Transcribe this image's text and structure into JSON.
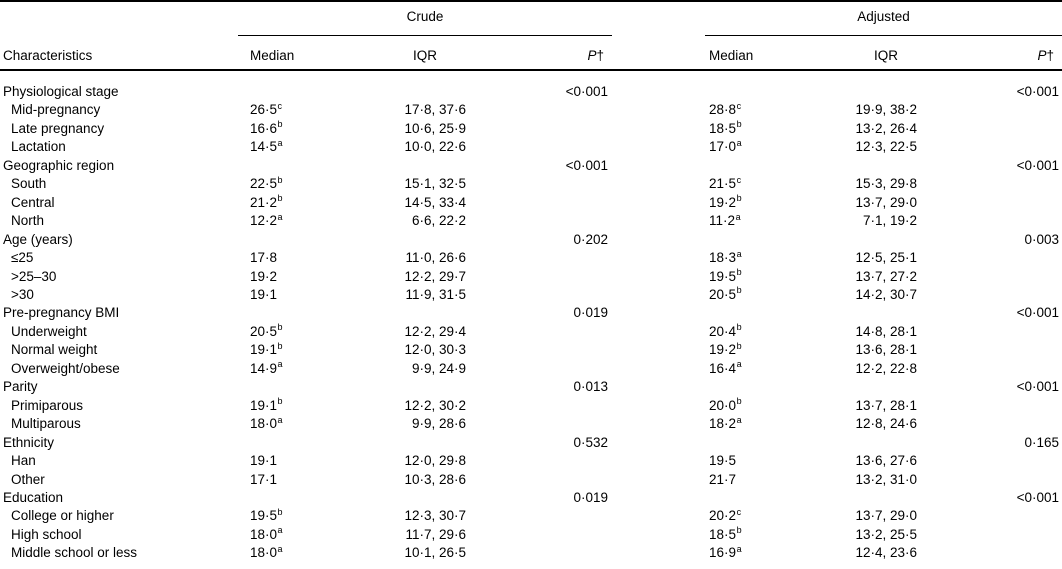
{
  "table": {
    "characteristics_header": "Characteristics",
    "groups": [
      {
        "label": "Crude"
      },
      {
        "label": "Adjusted"
      }
    ],
    "subheaders": {
      "median": "Median",
      "iqr": "IQR",
      "p": "P",
      "p_dagger": "†"
    },
    "rows": [
      {
        "label": "Physiological stage",
        "indent": 0,
        "c_med": "",
        "c_sup": "",
        "c_iqr": "",
        "c_p": "<0·001",
        "a_med": "",
        "a_sup": "",
        "a_iqr": "",
        "a_p": "<0·001"
      },
      {
        "label": "Mid-pregnancy",
        "indent": 1,
        "c_med": "26·5",
        "c_sup": "c",
        "c_iqr": "17·8, 37·6",
        "c_p": "",
        "a_med": "28·8",
        "a_sup": "c",
        "a_iqr": "19·9, 38·2",
        "a_p": ""
      },
      {
        "label": "Late pregnancy",
        "indent": 1,
        "c_med": "16·6",
        "c_sup": "b",
        "c_iqr": "10·6, 25·9",
        "c_p": "",
        "a_med": "18·5",
        "a_sup": "b",
        "a_iqr": "13·2, 26·4",
        "a_p": ""
      },
      {
        "label": "Lactation",
        "indent": 1,
        "c_med": "14·5",
        "c_sup": "a",
        "c_iqr": "10·0, 22·6",
        "c_p": "",
        "a_med": "17·0",
        "a_sup": "a",
        "a_iqr": "12·3, 22·5",
        "a_p": ""
      },
      {
        "label": "Geographic region",
        "indent": 0,
        "c_med": "",
        "c_sup": "",
        "c_iqr": "",
        "c_p": "<0·001",
        "a_med": "",
        "a_sup": "",
        "a_iqr": "",
        "a_p": "<0·001"
      },
      {
        "label": "South",
        "indent": 1,
        "c_med": "22·5",
        "c_sup": "b",
        "c_iqr": "15·1, 32·5",
        "c_p": "",
        "a_med": "21·5",
        "a_sup": "c",
        "a_iqr": "15·3, 29·8",
        "a_p": ""
      },
      {
        "label": "Central",
        "indent": 1,
        "c_med": "21·2",
        "c_sup": "b",
        "c_iqr": "14·5, 33·4",
        "c_p": "",
        "a_med": "19·2",
        "a_sup": "b",
        "a_iqr": "13·7, 29·0",
        "a_p": ""
      },
      {
        "label": "North",
        "indent": 1,
        "c_med": "12·2",
        "c_sup": "a",
        "c_iqr": "6·6, 22·2",
        "c_p": "",
        "a_med": "11·2",
        "a_sup": "a",
        "a_iqr": "7·1, 19·2",
        "a_p": ""
      },
      {
        "label": "Age (years)",
        "indent": 0,
        "c_med": "",
        "c_sup": "",
        "c_iqr": "",
        "c_p": "0·202",
        "a_med": "",
        "a_sup": "",
        "a_iqr": "",
        "a_p": "0·003"
      },
      {
        "label": "≤25",
        "indent": 1,
        "c_med": "17·8",
        "c_sup": "",
        "c_iqr": "11·0, 26·6",
        "c_p": "",
        "a_med": "18·3",
        "a_sup": "a",
        "a_iqr": "12·5, 25·1",
        "a_p": ""
      },
      {
        "label": ">25–30",
        "indent": 1,
        "c_med": "19·2",
        "c_sup": "",
        "c_iqr": "12·2, 29·7",
        "c_p": "",
        "a_med": "19·5",
        "a_sup": "b",
        "a_iqr": "13·7, 27·2",
        "a_p": ""
      },
      {
        "label": ">30",
        "indent": 1,
        "c_med": "19·1",
        "c_sup": "",
        "c_iqr": "11·9, 31·5",
        "c_p": "",
        "a_med": "20·5",
        "a_sup": "b",
        "a_iqr": "14·2, 30·7",
        "a_p": ""
      },
      {
        "label": "Pre-pregnancy BMI",
        "indent": 0,
        "c_med": "",
        "c_sup": "",
        "c_iqr": "",
        "c_p": "0·019",
        "a_med": "",
        "a_sup": "",
        "a_iqr": "",
        "a_p": "<0·001"
      },
      {
        "label": "Underweight",
        "indent": 1,
        "c_med": "20·5",
        "c_sup": "b",
        "c_iqr": "12·2, 29·4",
        "c_p": "",
        "a_med": "20·4",
        "a_sup": "b",
        "a_iqr": "14·8, 28·1",
        "a_p": ""
      },
      {
        "label": "Normal weight",
        "indent": 1,
        "c_med": "19·1",
        "c_sup": "b",
        "c_iqr": "12·0, 30·3",
        "c_p": "",
        "a_med": "19·2",
        "a_sup": "b",
        "a_iqr": "13·6, 28·1",
        "a_p": ""
      },
      {
        "label": "Overweight/obese",
        "indent": 1,
        "c_med": "14·9",
        "c_sup": "a",
        "c_iqr": "9·9, 24·9",
        "c_p": "",
        "a_med": "16·4",
        "a_sup": "a",
        "a_iqr": "12·2, 22·8",
        "a_p": ""
      },
      {
        "label": "Parity",
        "indent": 0,
        "c_med": "",
        "c_sup": "",
        "c_iqr": "",
        "c_p": "0·013",
        "a_med": "",
        "a_sup": "",
        "a_iqr": "",
        "a_p": "<0·001"
      },
      {
        "label": "Primiparous",
        "indent": 1,
        "c_med": "19·1",
        "c_sup": "b",
        "c_iqr": "12·2, 30·2",
        "c_p": "",
        "a_med": "20·0",
        "a_sup": "b",
        "a_iqr": "13·7, 28·1",
        "a_p": ""
      },
      {
        "label": "Multiparous",
        "indent": 1,
        "c_med": "18·0",
        "c_sup": "a",
        "c_iqr": "9·9, 28·6",
        "c_p": "",
        "a_med": "18·2",
        "a_sup": "a",
        "a_iqr": "12·8, 24·6",
        "a_p": ""
      },
      {
        "label": "Ethnicity",
        "indent": 0,
        "c_med": "",
        "c_sup": "",
        "c_iqr": "",
        "c_p": "0·532",
        "a_med": "",
        "a_sup": "",
        "a_iqr": "",
        "a_p": "0·165"
      },
      {
        "label": "Han",
        "indent": 1,
        "c_med": "19·1",
        "c_sup": "",
        "c_iqr": "12·0, 29·8",
        "c_p": "",
        "a_med": "19·5",
        "a_sup": "",
        "a_iqr": "13·6, 27·6",
        "a_p": ""
      },
      {
        "label": "Other",
        "indent": 1,
        "c_med": "17·1",
        "c_sup": "",
        "c_iqr": "10·3, 28·6",
        "c_p": "",
        "a_med": "21·7",
        "a_sup": "",
        "a_iqr": "13·2, 31·0",
        "a_p": ""
      },
      {
        "label": "Education",
        "indent": 0,
        "c_med": "",
        "c_sup": "",
        "c_iqr": "",
        "c_p": "0·019",
        "a_med": "",
        "a_sup": "",
        "a_iqr": "",
        "a_p": "<0·001"
      },
      {
        "label": "College or higher",
        "indent": 1,
        "c_med": "19·5",
        "c_sup": "b",
        "c_iqr": "12·3, 30·7",
        "c_p": "",
        "a_med": "20·2",
        "a_sup": "c",
        "a_iqr": "13·7, 29·0",
        "a_p": ""
      },
      {
        "label": "High school",
        "indent": 1,
        "c_med": "18·0",
        "c_sup": "a",
        "c_iqr": "11·7, 29·6",
        "c_p": "",
        "a_med": "18·5",
        "a_sup": "b",
        "a_iqr": "13·2, 25·5",
        "a_p": ""
      },
      {
        "label": "Middle school or less",
        "indent": 1,
        "c_med": "18·0",
        "c_sup": "a",
        "c_iqr": "10·1, 26·5",
        "c_p": "",
        "a_med": "16·9",
        "a_sup": "a",
        "a_iqr": "12·4, 23·6",
        "a_p": ""
      }
    ]
  }
}
